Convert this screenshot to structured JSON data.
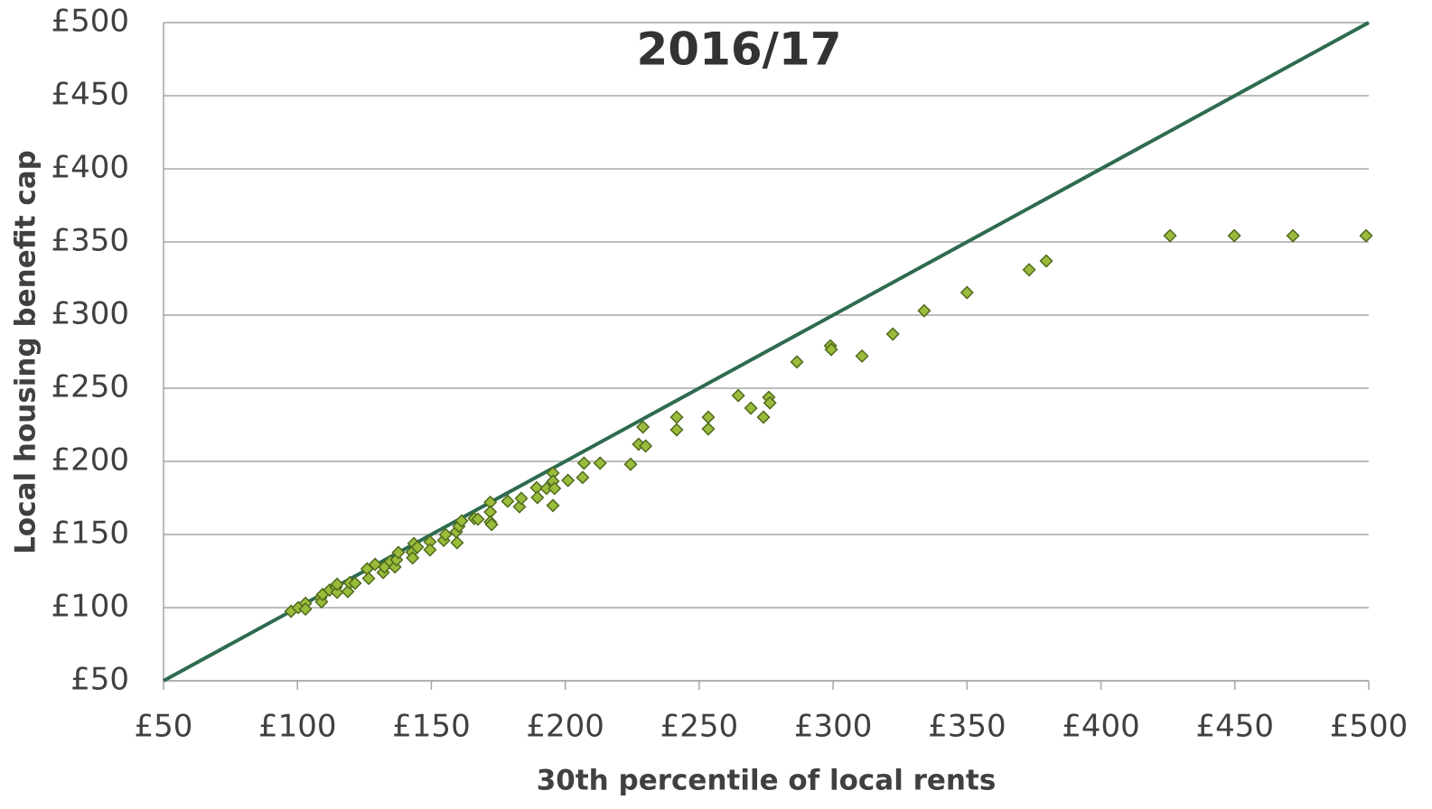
{
  "chart_data": {
    "type": "scatter",
    "title": "2016/17",
    "x_label": "30th percentile of local rents",
    "y_label": "Local housing benefit cap",
    "xlim": [
      50,
      500
    ],
    "ylim": [
      50,
      500
    ],
    "xticks": [
      {
        "value": 50,
        "label": "£50"
      },
      {
        "value": 100,
        "label": "£100"
      },
      {
        "value": 150,
        "label": "£150"
      },
      {
        "value": 200,
        "label": "£200"
      },
      {
        "value": 250,
        "label": "£250"
      },
      {
        "value": 300,
        "label": "£300"
      },
      {
        "value": 350,
        "label": "£350"
      },
      {
        "value": 400,
        "label": "£400"
      },
      {
        "value": 450,
        "label": "£450"
      },
      {
        "value": 500,
        "label": "£500"
      }
    ],
    "yticks": [
      {
        "value": 50,
        "label": "£50"
      },
      {
        "value": 100,
        "label": "£100"
      },
      {
        "value": 150,
        "label": "£150"
      },
      {
        "value": 200,
        "label": "£200"
      },
      {
        "value": 250,
        "label": "£250"
      },
      {
        "value": 300,
        "label": "£300"
      },
      {
        "value": 350,
        "label": "£350"
      },
      {
        "value": 400,
        "label": "£400"
      },
      {
        "value": 450,
        "label": "£450"
      },
      {
        "value": 500,
        "label": "£500"
      }
    ],
    "grid": true,
    "marker_color": "#9bbb3b",
    "marker_edge_color": "#4f6b1f",
    "x": [
      97.6,
      100.3,
      103,
      103,
      108.7,
      109,
      109.4,
      112,
      114.4,
      114.8,
      114.8,
      118.8,
      119.5,
      121.5,
      126,
      126.6,
      129,
      132,
      132.5,
      134.7,
      136.4,
      137,
      137.7,
      142.8,
      143,
      143.5,
      144.8,
      149.5,
      149.5,
      154.6,
      155.3,
      159.3,
      159.6,
      160.3,
      161.3,
      166,
      167.4,
      172,
      172,
      172,
      172.5,
      178.5,
      182.9,
      183.6,
      189.3,
      189.6,
      193,
      195.4,
      195.4,
      195.4,
      196,
      201,
      206.5,
      207,
      213,
      224.4,
      227.4,
      229,
      230,
      241.6,
      241.6,
      253.4,
      253.4,
      264.6,
      269.3,
      274,
      276,
      276.4,
      286.5,
      299,
      299.3,
      310.8,
      322.3,
      334,
      350,
      373.2,
      379.6,
      425.8,
      449.8,
      471.7,
      499
    ],
    "y": [
      97.5,
      100,
      103,
      99,
      106.8,
      104,
      109,
      112,
      114,
      110.5,
      116,
      111,
      117,
      116.7,
      126.5,
      120,
      129.6,
      124,
      127.8,
      131.5,
      127.8,
      132.7,
      137.7,
      138,
      134,
      143.8,
      141.4,
      145,
      139.5,
      146,
      150,
      151.8,
      144.4,
      155.6,
      159.3,
      161,
      160.5,
      172,
      165.4,
      158.6,
      156.8,
      172.8,
      169,
      174.7,
      182,
      175.3,
      181.5,
      192,
      186.4,
      169.8,
      181.5,
      187,
      189,
      198.8,
      198.8,
      198,
      211.7,
      223.5,
      210.5,
      230.2,
      221.6,
      230.2,
      222.2,
      245,
      236.4,
      230.2,
      243.8,
      240,
      268,
      279,
      276.5,
      272,
      287,
      303,
      315.4,
      331,
      337,
      354.3,
      354.3,
      354.3,
      354.3
    ],
    "lines": [
      {
        "x": [
          50,
          500
        ],
        "y": [
          50,
          500
        ],
        "color": "#2e6b4f"
      }
    ]
  }
}
